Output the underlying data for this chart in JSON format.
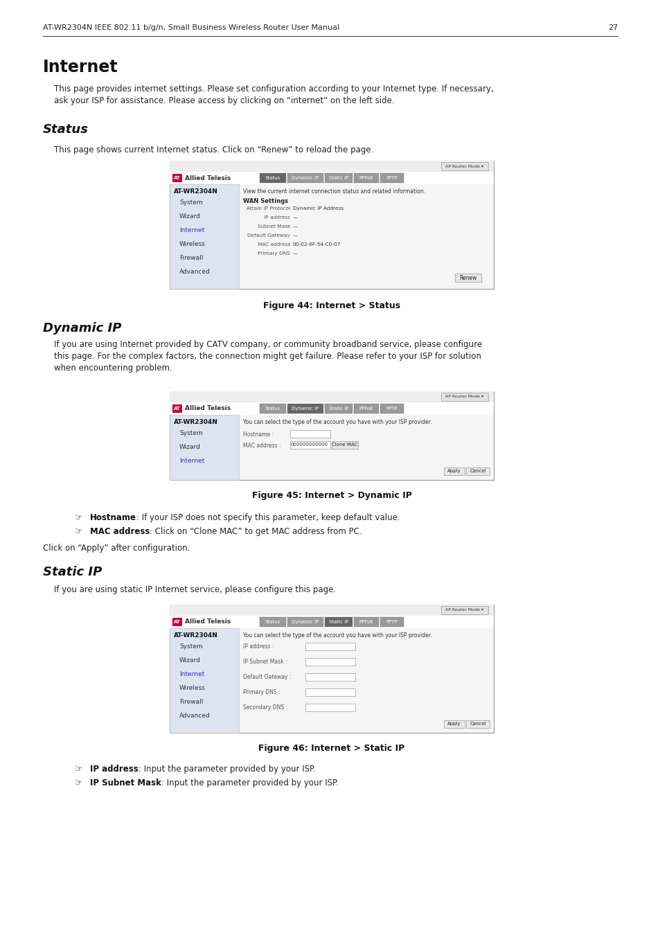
{
  "header_text": "AT-WR2304N IEEE 802.11 b/g/n, Small Business Wireless Router User Manual",
  "page_number": "27",
  "bg_color": "#ffffff",
  "section1_title": "Internet",
  "section1_body": "This page provides internet settings. Please set configuration according to your Internet type. If necessary,\nask your ISP for assistance. Please access by clicking on “internet” on the left side.",
  "section2_title": "Status",
  "section2_body": "This page shows current Internet status. Click on “Renew” to reload the page.",
  "fig44_caption": "Figure 44: Internet > Status",
  "section3_title": "Dynamic IP",
  "section3_body": "If you are using Internet provided by CATV company, or community broadband service, please configure\nthis page. For the complex factors, the connection might get failure. Please refer to your ISP for solution\nwhen encountering problem.",
  "fig45_caption": "Figure 45: Internet > Dynamic IP",
  "bullet1_bold": "Hostname",
  "bullet1_rest": ": If your ISP does not specify this parameter, keep default value.",
  "bullet2_bold": "MAC address",
  "bullet2_rest": ": Click on “Clone MAC” to get MAC address from PC.",
  "apply_text": "Click on “Apply” after configuration.",
  "section4_title": "Static IP",
  "section4_body": "If you are using static IP Internet service, please configure this page.",
  "fig46_caption": "Figure 46: Internet > Static IP",
  "bullet3_bold": "IP address",
  "bullet3_rest": ": Input the parameter provided by your ISP.",
  "bullet4_bold": "IP Subnet Mask",
  "bullet4_rest": ": Input the parameter provided by your ISP."
}
